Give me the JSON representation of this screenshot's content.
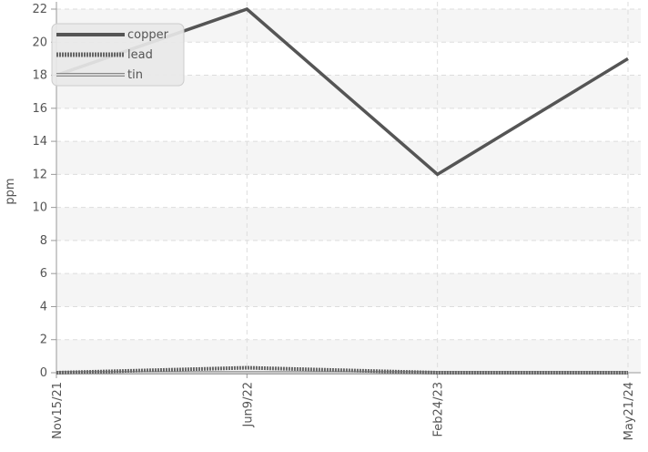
{
  "chart_data": {
    "type": "line",
    "x": [
      "Nov15/21",
      "Jun9/22",
      "Feb24/23",
      "May21/24"
    ],
    "ylabel": "ppm",
    "ylim": [
      0,
      22
    ],
    "yticks": [
      0,
      2,
      4,
      6,
      8,
      10,
      12,
      14,
      16,
      18,
      20,
      22
    ],
    "grid": true,
    "legend_position": "top-left",
    "series": [
      {
        "name": "copper",
        "values": [
          18,
          22,
          12,
          19
        ],
        "color": "#555555",
        "style": "solid"
      },
      {
        "name": "lead",
        "values": [
          0,
          0.3,
          0,
          0
        ],
        "color": "#666666",
        "style": "dotted-thick"
      },
      {
        "name": "tin",
        "values": [
          0,
          0,
          0,
          0
        ],
        "color": "#888888",
        "style": "double-line"
      }
    ]
  }
}
